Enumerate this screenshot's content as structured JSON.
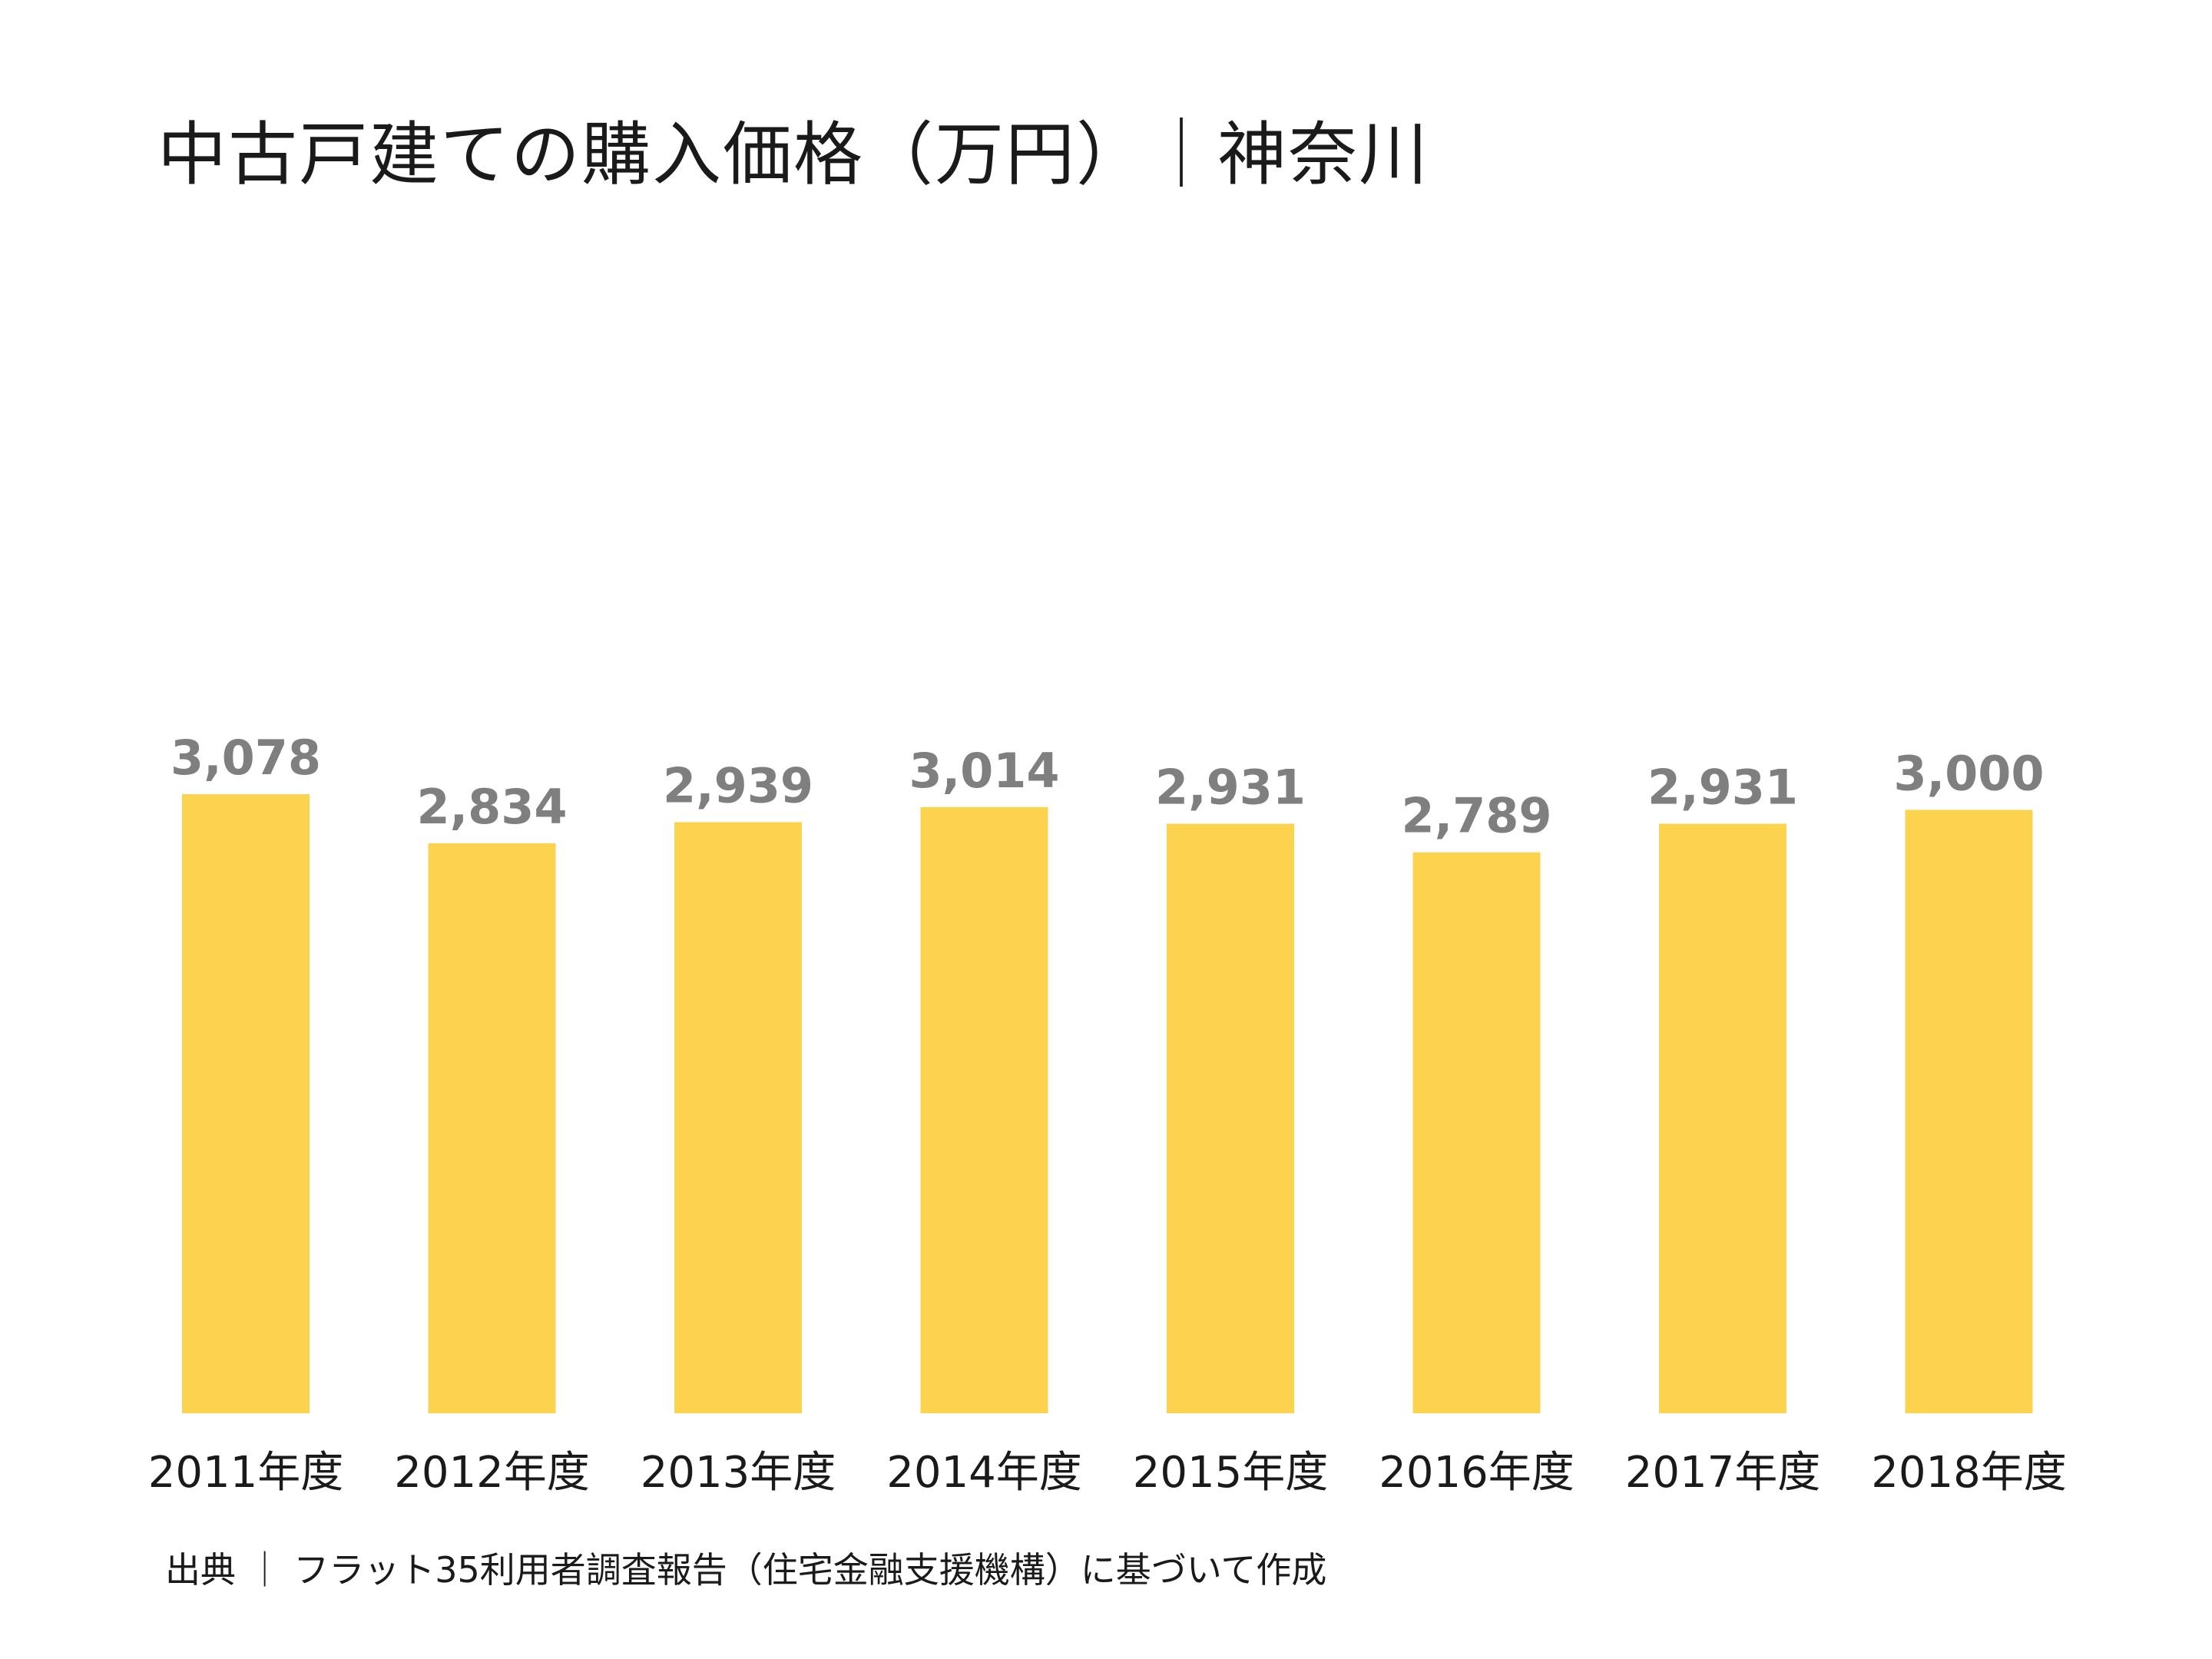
{
  "title": "中古戸建ての購入価格（万円）｜神奈川",
  "source": "出典 ｜ フラット35利用者調査報告（住宅金融支援機構）に基づいて作成",
  "colors": {
    "bar": "#FCD34F",
    "value_label": "#7F7F7F",
    "tick_label": "#1A1A1A"
  },
  "chart_data": {
    "type": "bar",
    "title": "中古戸建ての購入価格（万円）｜神奈川",
    "xlabel": "",
    "ylabel": "",
    "categories": [
      "2011年度",
      "2012年度",
      "2013年度",
      "2014年度",
      "2015年度",
      "2016年度",
      "2017年度",
      "2018年度"
    ],
    "values": [
      3078,
      2834,
      2939,
      3014,
      2931,
      2789,
      2931,
      3000
    ],
    "value_labels": [
      "3,078",
      "2,834",
      "2,939",
      "3,014",
      "2,931",
      "2,789",
      "2,931",
      "3,000"
    ],
    "ylim": [
      0,
      3078
    ],
    "grid": false,
    "legend": "none"
  }
}
